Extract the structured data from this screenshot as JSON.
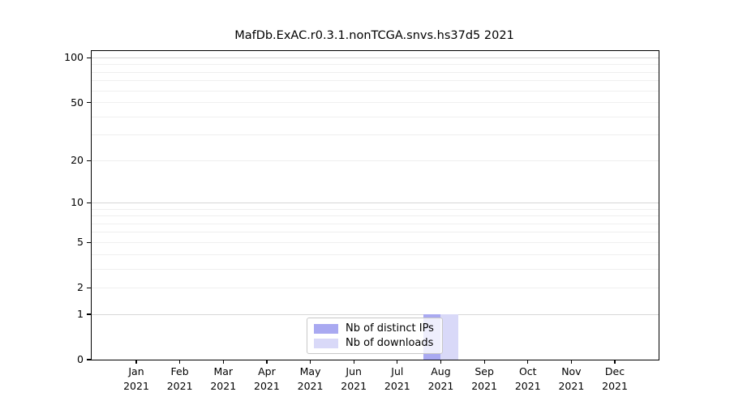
{
  "chart_data": {
    "type": "bar",
    "title": "MafDb.ExAC.r0.3.1.nonTCGA.snvs.hs37d5 2021",
    "categories": [
      "Jan 2021",
      "Feb 2021",
      "Mar 2021",
      "Apr 2021",
      "May 2021",
      "Jun 2021",
      "Jul 2021",
      "Aug 2021",
      "Sep 2021",
      "Oct 2021",
      "Nov 2021",
      "Dec 2021"
    ],
    "series": [
      {
        "name": "Nb of distinct IPs",
        "color": "#a9a9f1",
        "values": [
          0,
          0,
          0,
          0,
          0,
          0,
          0,
          1,
          0,
          0,
          0,
          0
        ]
      },
      {
        "name": "Nb of downloads",
        "color": "#d9d9f8",
        "values": [
          0,
          0,
          0,
          0,
          0,
          0,
          0,
          1,
          0,
          0,
          0,
          0
        ]
      }
    ],
    "xlabel": "",
    "ylabel": "",
    "y_scale": "log1p",
    "ylim": [
      0,
      111
    ],
    "y_ticks": [
      0,
      1,
      2,
      5,
      10,
      20,
      50,
      100
    ],
    "y_major_gridlines": [
      1,
      10,
      100
    ],
    "y_minor_gridlines": [
      2,
      3,
      4,
      5,
      6,
      7,
      8,
      9,
      20,
      30,
      40,
      50,
      60,
      70,
      80,
      90
    ],
    "grid": "horizontal",
    "legend_position": "lower center",
    "colors": {
      "axis": "#000000",
      "text": "#000000",
      "major_grid": "#d7d7d7",
      "minor_grid": "#efefef",
      "legend_border": "#c8c8c8",
      "legend_bg": "rgba(255,255,255,0.8)",
      "background": "#ffffff"
    }
  }
}
